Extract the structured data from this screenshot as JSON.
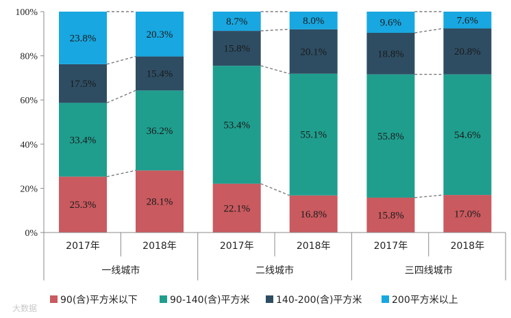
{
  "chart_data": {
    "type": "stacked-bar-100",
    "ylim": [
      0,
      100
    ],
    "yticks": [
      "0%",
      "20%",
      "40%",
      "60%",
      "80%",
      "100%"
    ],
    "groups": [
      {
        "label": "一线城市",
        "bars": [
          {
            "year": "2017年",
            "values": [
              25.3,
              33.4,
              17.5,
              23.8
            ],
            "labels": [
              "25.3%",
              "33.4%",
              "17.5%",
              "23.8%"
            ]
          },
          {
            "year": "2018年",
            "values": [
              28.1,
              36.2,
              15.4,
              20.3
            ],
            "labels": [
              "28.1%",
              "36.2%",
              "15.4%",
              "20.3%"
            ]
          }
        ]
      },
      {
        "label": "二线城市",
        "bars": [
          {
            "year": "2017年",
            "values": [
              22.1,
              53.4,
              15.8,
              8.7
            ],
            "labels": [
              "22.1%",
              "53.4%",
              "15.8%",
              "8.7%"
            ]
          },
          {
            "year": "2018年",
            "values": [
              16.8,
              55.1,
              20.1,
              8.0
            ],
            "labels": [
              "16.8%",
              "55.1%",
              "20.1%",
              "8.0%"
            ]
          }
        ]
      },
      {
        "label": "三四线城市",
        "bars": [
          {
            "year": "2017年",
            "values": [
              15.8,
              55.8,
              18.8,
              9.6
            ],
            "labels": [
              "15.8%",
              "55.8%",
              "18.8%",
              "9.6%"
            ]
          },
          {
            "year": "2018年",
            "values": [
              17.0,
              54.6,
              20.8,
              7.6
            ],
            "labels": [
              "17.0%",
              "54.6%",
              "20.8%",
              "7.6%"
            ]
          }
        ]
      }
    ],
    "series": [
      {
        "name": "90(含)平方米以下",
        "color": "#c95a5f"
      },
      {
        "name": "90-140(含)平方米",
        "color": "#1f9e8e"
      },
      {
        "name": "140-200(含)平方米",
        "color": "#2e4d63"
      },
      {
        "name": "200平方米以上",
        "color": "#18a7e0"
      }
    ]
  },
  "watermark": "大数据"
}
